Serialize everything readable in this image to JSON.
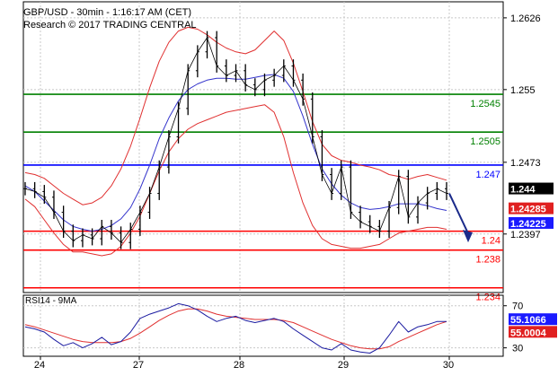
{
  "header": {
    "title": "GBP/USD - 30min - 1:16:17 AM (CET)",
    "copyright": "Research © 2017 TRADING CENTRAL"
  },
  "colors": {
    "green": "#008000",
    "blue": "#0000ff",
    "red": "#ff0000",
    "price": "#000000",
    "ma": "#3333cc",
    "bollinger": "#e03030",
    "rsi": "#1a1aa0",
    "rsi_ma": "#e03030",
    "grid": "#c8c8c8",
    "arrow": "#1a2a8a"
  },
  "chart_data": [
    {
      "type": "line",
      "title": "GBP/USD - 30min - 1:16:17 AM (CET)",
      "x_ticks": [
        "24",
        "27",
        "28",
        "29",
        "30"
      ],
      "y_ticks": [
        1.2626,
        1.255,
        1.2473,
        1.2397
      ],
      "ylim": [
        1.2335,
        1.2643
      ],
      "grid": "dashed",
      "horizontal_levels": [
        {
          "value": 1.2545,
          "label": "1.2545",
          "color": "green"
        },
        {
          "value": 1.2505,
          "label": "1.2505",
          "color": "green"
        },
        {
          "value": 1.247,
          "label": "1.247",
          "color": "blue"
        },
        {
          "value": 1.24,
          "label": "1.24",
          "color": "red"
        },
        {
          "value": 1.238,
          "label": "1.238",
          "color": "red"
        },
        {
          "value": 1.234,
          "label": "1.234",
          "color": "red"
        }
      ],
      "value_boxes": [
        {
          "text": "1.244",
          "background": "#000000",
          "value": 1.244
        },
        {
          "text": "1.24285",
          "background": "#e02020",
          "value": 1.24285
        },
        {
          "text": "1.24225",
          "background": "#1a1aff",
          "value": 1.24225
        }
      ],
      "price_path": [
        1.2445,
        1.2442,
        1.2436,
        1.242,
        1.24,
        1.239,
        1.2396,
        1.2392,
        1.2405,
        1.2398,
        1.2388,
        1.2402,
        1.242,
        1.244,
        1.2468,
        1.25,
        1.253,
        1.257,
        1.259,
        1.2605,
        1.2575,
        1.2565,
        1.257,
        1.2555,
        1.255,
        1.256,
        1.2565,
        1.2575,
        1.256,
        1.254,
        1.25,
        1.246,
        1.244,
        1.2468,
        1.242,
        1.241,
        1.2405,
        1.24,
        1.2425,
        1.2458,
        1.2415,
        1.243,
        1.244,
        1.2445,
        1.244
      ],
      "ma_path": [
        1.2448,
        1.2442,
        1.2432,
        1.2422,
        1.2412,
        1.2405,
        1.2402,
        1.24,
        1.2402,
        1.2406,
        1.2413,
        1.2425,
        1.2445,
        1.247,
        1.2498,
        1.252,
        1.2538,
        1.255,
        1.2556,
        1.256,
        1.2562,
        1.2562,
        1.2561,
        1.2561,
        1.2563,
        1.2565,
        1.2566,
        1.2562,
        1.2548,
        1.2522,
        1.2492,
        1.2466,
        1.245,
        1.2438,
        1.243,
        1.2425,
        1.2423,
        1.2424,
        1.2426,
        1.2429,
        1.2429,
        1.2429,
        1.2427,
        1.2424,
        1.2422
      ],
      "bollinger_upper": [
        1.2462,
        1.246,
        1.2456,
        1.2448,
        1.244,
        1.2434,
        1.2428,
        1.243,
        1.2436,
        1.2448,
        1.2466,
        1.249,
        1.252,
        1.2552,
        1.258,
        1.26,
        1.2612,
        1.2616,
        1.2614,
        1.2608,
        1.26,
        1.2594,
        1.259,
        1.2588,
        1.2592,
        1.2602,
        1.2612,
        1.2602,
        1.2578,
        1.2548,
        1.2516,
        1.2492,
        1.248,
        1.2475,
        1.2473,
        1.247,
        1.2468,
        1.2465,
        1.246,
        1.2458,
        1.2455,
        1.2458,
        1.246,
        1.2457,
        1.2454
      ],
      "bollinger_lower": [
        1.2434,
        1.2426,
        1.2412,
        1.2398,
        1.2386,
        1.2378,
        1.2378,
        1.2376,
        1.2374,
        1.2376,
        1.2384,
        1.2398,
        1.2416,
        1.244,
        1.2464,
        1.2484,
        1.2498,
        1.2508,
        1.2514,
        1.2518,
        1.2522,
        1.2526,
        1.2528,
        1.253,
        1.2532,
        1.2534,
        1.2526,
        1.25,
        1.2462,
        1.243,
        1.2406,
        1.2392,
        1.2386,
        1.2384,
        1.2382,
        1.2382,
        1.2384,
        1.2386,
        1.2392,
        1.2398,
        1.24,
        1.2402,
        1.2404,
        1.2404,
        1.2402
      ],
      "forecast_arrow": {
        "from": 1.244,
        "to": 1.239
      }
    },
    {
      "type": "line",
      "title": "RSI14 - 9MA",
      "y_ticks": [
        70,
        30
      ],
      "ylim": [
        22,
        80
      ],
      "series": [
        {
          "values": [
            50,
            48,
            45,
            38,
            32,
            35,
            30,
            34,
            40,
            33,
            36,
            45,
            58,
            62,
            65,
            68,
            72,
            70,
            66,
            60,
            55,
            58,
            60,
            56,
            54,
            56,
            58,
            55,
            48,
            42,
            36,
            30,
            28,
            34,
            28,
            26,
            25,
            30,
            42,
            55,
            45,
            50,
            52,
            55,
            55
          ]
        },
        {
          "values": [
            52,
            50,
            47,
            44,
            41,
            38,
            36,
            35,
            35,
            35,
            36,
            39,
            44,
            50,
            56,
            61,
            65,
            67,
            67,
            65,
            62,
            60,
            59,
            58,
            57,
            57,
            57,
            56,
            54,
            50,
            46,
            42,
            38,
            35,
            32,
            30,
            29,
            29,
            31,
            36,
            40,
            44,
            48,
            52,
            55
          ]
        }
      ],
      "value_boxes": [
        {
          "text": "55.1066",
          "background": "#1a1aff",
          "value": 55.1066
        },
        {
          "text": "55.0004",
          "background": "#e02020",
          "value": 55.0004
        }
      ]
    }
  ]
}
